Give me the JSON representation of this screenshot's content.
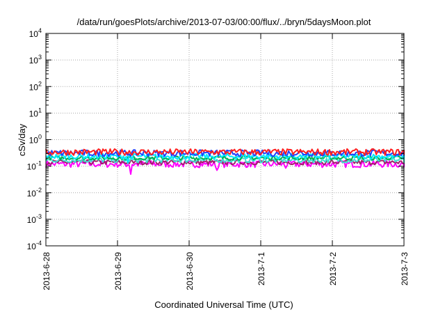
{
  "chart_data": {
    "type": "line",
    "title": "/data/run/goesPlots/archive/2013-07-03/00:00/flux/../bryn/5daysMoon.plot",
    "xlabel": "Coordinated Universal Time (UTC)",
    "ylabel": "cSv/day",
    "y_scale": "log",
    "ylim": [
      0.0001,
      10000
    ],
    "y_ticks": [
      {
        "value": 0.0001,
        "base": "10",
        "exp": "-4"
      },
      {
        "value": 0.001,
        "base": "10",
        "exp": "-3"
      },
      {
        "value": 0.01,
        "base": "10",
        "exp": "-2"
      },
      {
        "value": 0.1,
        "base": "10",
        "exp": "-1"
      },
      {
        "value": 1,
        "base": "10",
        "exp": "0"
      },
      {
        "value": 10,
        "base": "10",
        "exp": "1"
      },
      {
        "value": 100,
        "base": "10",
        "exp": "2"
      },
      {
        "value": 1000,
        "base": "10",
        "exp": "3"
      },
      {
        "value": 10000,
        "base": "10",
        "exp": "4"
      }
    ],
    "xlim": [
      "2013-06-28",
      "2013-07-03"
    ],
    "x_ticks": [
      "2013-6-28",
      "2013-6-29",
      "2013-6-30",
      "2013-7-1",
      "2013-7-2",
      "2013-7-3"
    ],
    "grid": true,
    "x_data_start": "2013-06-28T00:00",
    "x_data_end": "2013-07-03T02:00",
    "sample_count": 250,
    "series": [
      {
        "color": "#ff00ff",
        "median": 0.12,
        "noise": 0.13,
        "spikes": [
          {
            "frac": 0.2333,
            "value": 0.05
          },
          {
            "frac": 0.47,
            "value": 0.07
          },
          {
            "frac": 0.66,
            "value": 0.085
          }
        ]
      },
      {
        "color": "#a0206a",
        "median": 0.14,
        "noise": 0.09,
        "spikes": []
      },
      {
        "color": "#40e0d0",
        "median": 0.17,
        "noise": 0.1,
        "spikes": []
      },
      {
        "color": "#00b050",
        "median": 0.205,
        "noise": 0.08,
        "spikes": []
      },
      {
        "color": "#00e8ff",
        "median": 0.235,
        "noise": 0.1,
        "spikes": [
          {
            "frac": 0.225,
            "value": 0.13
          }
        ]
      },
      {
        "color": "#2040ff",
        "median": 0.31,
        "noise": 0.12,
        "spikes": []
      },
      {
        "color": "#ff2020",
        "median": 0.34,
        "noise": 0.12,
        "spikes": []
      }
    ]
  }
}
